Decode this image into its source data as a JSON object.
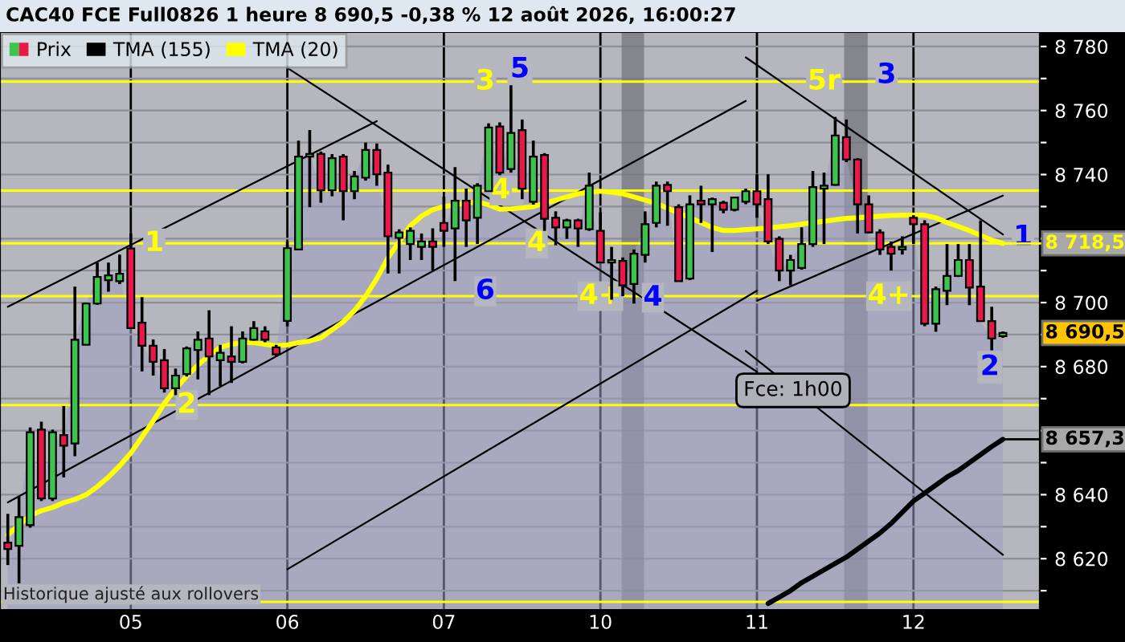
{
  "chart_data": {
    "type": "candlestick",
    "title": "CAC40 FCE Full0826 1 heure 8 690,5 -0,38 % 12 août 2026, 16:00:27",
    "categories": [
      null,
      null,
      null,
      null,
      null,
      null,
      null,
      null,
      null,
      null,
      null,
      "05",
      null,
      null,
      null,
      null,
      null,
      null,
      null,
      null,
      null,
      null,
      null,
      null,
      null,
      "06",
      null,
      null,
      null,
      null,
      null,
      null,
      null,
      null,
      null,
      null,
      null,
      null,
      null,
      "07",
      null,
      null,
      null,
      null,
      null,
      null,
      null,
      null,
      null,
      null,
      null,
      null,
      null,
      "10",
      null,
      null,
      null,
      null,
      null,
      null,
      null,
      null,
      null,
      null,
      null,
      null,
      null,
      "11",
      null,
      null,
      null,
      null,
      null,
      null,
      null,
      null,
      null,
      null,
      null,
      null,
      null,
      "12",
      null,
      null,
      null,
      null,
      null,
      null,
      null,
      null
    ],
    "ylim": [
      8604,
      8784.5
    ],
    "yticks": [
      {
        "value": 8610,
        "label": null
      },
      {
        "value": 8620,
        "label": "8 620"
      },
      {
        "value": 8630,
        "label": null
      },
      {
        "value": 8640,
        "label": "8 640"
      },
      {
        "value": 8650,
        "label": null
      },
      {
        "value": 8660,
        "label": null
      },
      {
        "value": 8670,
        "label": null
      },
      {
        "value": 8680,
        "label": "8 680"
      },
      {
        "value": 8690,
        "label": null
      },
      {
        "value": 8700,
        "label": "8 700"
      },
      {
        "value": 8710,
        "label": null
      },
      {
        "value": 8720,
        "label": null
      },
      {
        "value": 8730,
        "label": null
      },
      {
        "value": 8740,
        "label": "8 740"
      },
      {
        "value": 8750,
        "label": null
      },
      {
        "value": 8760,
        "label": "8 760"
      },
      {
        "value": 8770,
        "label": null
      },
      {
        "value": 8780,
        "label": "8 780"
      }
    ],
    "grid": true,
    "legend": "top left",
    "series": [
      {
        "name": "Prix",
        "colors": [
          "#e8184a",
          "#3cc44c",
          "#3cc44c",
          "#e8184a",
          "#3cc44c",
          "#e8184a",
          "#3cc44c",
          "#3cc44c",
          "#3cc44c",
          "#3cc44c",
          "#3cc44c",
          "#e8184a",
          "#e8184a",
          "#e8184a",
          "#e8184a",
          "#3cc44c",
          "#3cc44c",
          "#3cc44c",
          "#e8184a",
          "#3cc44c",
          "#e8184a",
          "#3cc44c",
          "#3cc44c",
          "#e8184a",
          "#e8184a",
          "#3cc44c",
          "#3cc44c",
          "#3cc44c",
          "#e8184a",
          "#3cc44c",
          "#e8184a",
          "#3cc44c",
          "#3cc44c",
          "#e8184a",
          "#e8184a",
          "#3cc44c",
          "#3cc44c",
          "#3cc44c",
          "#e8184a",
          "#e8184a",
          "#3cc44c",
          "#e8184a",
          "#3cc44c",
          "#3cc44c",
          "#e8184a",
          "#3cc44c",
          "#e8184a",
          "#3cc44c",
          "#e8184a",
          "#e8184a",
          "#3cc44c",
          "#e8184a",
          "#3cc44c",
          "#e8184a",
          "#3cc44c",
          "#e8184a",
          "#3cc44c",
          "#3cc44c",
          "#3cc44c",
          "#e8184a",
          "#e8184a",
          "#3cc44c",
          "#e8184a",
          "#3cc44c",
          "#e8184a",
          "#3cc44c",
          "#3cc44c",
          "#e8184a",
          "#e8184a",
          "#e8184a",
          "#3cc44c",
          "#3cc44c",
          "#3cc44c",
          "#3cc44c",
          "#3cc44c",
          "#e8184a",
          "#e8184a",
          "#e8184a",
          "#e8184a",
          "#e8184a",
          "#3cc44c",
          "#e8184a",
          "#e8184a",
          "#3cc44c",
          "#3cc44c",
          "#3cc44c",
          "#e8184a",
          "#e8184a",
          "#e8184a",
          "#3cc44c"
        ],
        "ohlc": [
          [
            8625,
            8634,
            8618,
            8623
          ],
          [
            8624,
            8639.6,
            8612.3,
            8633
          ],
          [
            8630.5,
            8661,
            8629.7,
            8659.5
          ],
          [
            8660.3,
            8662.8,
            8638,
            8638.8
          ],
          [
            8638.8,
            8660.3,
            8638,
            8659.5
          ],
          [
            8658.6,
            8667.7,
            8645.4,
            8655.3
          ],
          [
            8656,
            8705,
            8652,
            8688.4
          ],
          [
            8686.8,
            8700,
            8686.8,
            8699.7
          ],
          [
            8699.7,
            8712.5,
            8699.3,
            8708
          ],
          [
            8707,
            8712.5,
            8703.4,
            8708.5
          ],
          [
            8706.7,
            8715,
            8705.8,
            8709
          ],
          [
            8716.9,
            8721.6,
            8691.8,
            8692
          ],
          [
            8693.7,
            8701.7,
            8678.5,
            8686.5
          ],
          [
            8686.5,
            8688.5,
            8677.2,
            8681.5
          ],
          [
            8682,
            8685.5,
            8671.9,
            8673.2
          ],
          [
            8673.2,
            8679.4,
            8671.1,
            8677.2
          ],
          [
            8677.7,
            8686.3,
            8676.9,
            8685.7
          ],
          [
            8685.2,
            8691,
            8676,
            8688.4
          ],
          [
            8688.8,
            8697.6,
            8671.1,
            8683.2
          ],
          [
            8682,
            8686.8,
            8673.9,
            8684.3
          ],
          [
            8683.2,
            8692.6,
            8674.9,
            8681.5
          ],
          [
            8681.5,
            8691,
            8681,
            8688.8
          ],
          [
            8688.4,
            8694.2,
            8688.1,
            8692
          ],
          [
            8691,
            8692.6,
            8687.6,
            8688.4
          ],
          [
            8686,
            8686.8,
            8683.2,
            8683.8
          ],
          [
            8694.3,
            8719,
            8692.6,
            8717
          ],
          [
            8716.6,
            8750.6,
            8716.6,
            8745.6
          ],
          [
            8745.6,
            8753.9,
            8729.8,
            8746.4
          ],
          [
            8746.4,
            8747.2,
            8731.2,
            8735.1
          ],
          [
            8735.1,
            8746.4,
            8733.2,
            8745.1
          ],
          [
            8745.6,
            8746.4,
            8725.7,
            8734.8
          ],
          [
            8734.8,
            8741.1,
            8732.3,
            8739.4
          ],
          [
            8739,
            8750,
            8738.1,
            8747.7
          ],
          [
            8747.7,
            8749.7,
            8736.5,
            8740.1
          ],
          [
            8740.6,
            8743.1,
            8709.1,
            8720.7
          ],
          [
            8720.2,
            8722.9,
            8709.1,
            8721.9
          ],
          [
            8718.3,
            8723.5,
            8713.3,
            8722.4
          ],
          [
            8717.4,
            8721.6,
            8713.3,
            8719.1
          ],
          [
            8719.1,
            8723.2,
            8710,
            8717.4
          ],
          [
            8724.9,
            8733.1,
            8717.4,
            8722.4
          ],
          [
            8723.2,
            8742.3,
            8706.7,
            8731.8
          ],
          [
            8731.8,
            8735.6,
            8717.4,
            8725.7
          ],
          [
            8726.5,
            8737.3,
            8718.3,
            8736.5
          ],
          [
            8734.8,
            8756,
            8734.8,
            8754.7
          ],
          [
            8755,
            8756.3,
            8739.8,
            8740.6
          ],
          [
            8741.7,
            8767.9,
            8740.6,
            8753
          ],
          [
            8753.9,
            8757.2,
            8732.3,
            8735.6
          ],
          [
            8731.5,
            8750.6,
            8730.6,
            8745.6
          ],
          [
            8746.1,
            8746.7,
            8722.4,
            8726.2
          ],
          [
            8726.5,
            8728.5,
            8717.9,
            8723.5
          ],
          [
            8723.5,
            8726.2,
            8719.9,
            8725.7
          ],
          [
            8725.7,
            8726.2,
            8717.4,
            8723.2
          ],
          [
            8722.9,
            8740.6,
            8722.4,
            8736.5
          ],
          [
            8722.4,
            8728.2,
            8712.5,
            8712.5
          ],
          [
            8712.5,
            8717.4,
            8700.9,
            8713.3
          ],
          [
            8713,
            8714.1,
            8702,
            8705.4
          ],
          [
            8705.8,
            8716.6,
            8699.7,
            8715.3
          ],
          [
            8714.9,
            8728.5,
            8712.5,
            8724.5
          ],
          [
            8724.9,
            8737.8,
            8723.5,
            8736.5
          ],
          [
            8736.8,
            8737.8,
            8724,
            8734.8
          ],
          [
            8729.8,
            8730.7,
            8706.7,
            8706.7
          ],
          [
            8707.5,
            8733.5,
            8707,
            8730.7
          ],
          [
            8731.8,
            8736.5,
            8724.9,
            8730.7
          ],
          [
            8730.7,
            8732.8,
            8715.8,
            8732.3
          ],
          [
            8731.2,
            8731.8,
            8727.9,
            8729
          ],
          [
            8729,
            8733.1,
            8728.5,
            8732.8
          ],
          [
            8731.5,
            8735.6,
            8730.7,
            8734.8
          ],
          [
            8734.8,
            8740.1,
            8726.5,
            8730.7
          ],
          [
            8732.3,
            8740.1,
            8718.3,
            8719.1
          ],
          [
            8719.9,
            8720.7,
            8706.7,
            8710
          ],
          [
            8710,
            8714.9,
            8705.4,
            8713.3
          ],
          [
            8710.8,
            8723.5,
            8710.3,
            8718.3
          ],
          [
            8718.3,
            8741.1,
            8717.4,
            8736.1
          ],
          [
            8735.6,
            8740.6,
            8718.3,
            8736.5
          ],
          [
            8736.8,
            8758,
            8736.5,
            8752.2
          ],
          [
            8751.7,
            8757.2,
            8743.9,
            8744.7
          ],
          [
            8744.7,
            8745.1,
            8721.6,
            8730.7
          ],
          [
            8730.7,
            8733.5,
            8721.6,
            8721.9
          ],
          [
            8721.9,
            8722.9,
            8714.9,
            8716.6
          ],
          [
            8717.4,
            8719.1,
            8710,
            8715.3
          ],
          [
            8716.6,
            8720.7,
            8715,
            8717.4
          ],
          [
            8726.5,
            8727.3,
            8718.3,
            8724.5
          ],
          [
            8724.5,
            8725.7,
            8692.6,
            8693.4
          ],
          [
            8693.4,
            8705,
            8690.9,
            8704.2
          ],
          [
            8703.7,
            8718.3,
            8699.2,
            8708.3
          ],
          [
            8708.3,
            8718.3,
            8708,
            8713.3
          ],
          [
            8713.3,
            8718.3,
            8699.2,
            8704.7
          ],
          [
            8705,
            8725.7,
            8694.2,
            8694.2
          ],
          [
            8694.2,
            8698.7,
            8685.1,
            8688.8
          ],
          [
            8689.5,
            8691,
            8689,
            8690.5
          ]
        ],
        "value_labels": [
          null,
          null,
          null,
          null,
          null,
          null,
          null,
          null,
          null,
          null,
          null,
          null,
          null,
          null,
          null,
          null,
          null,
          null,
          null,
          null,
          null,
          null,
          null,
          null,
          null,
          null,
          null,
          null,
          null,
          null,
          null,
          null,
          null,
          null,
          null,
          null,
          null,
          null,
          null,
          null,
          null,
          null,
          null,
          null,
          null,
          null,
          null,
          null,
          null,
          null,
          null,
          null,
          null,
          null,
          null,
          null,
          null,
          null,
          null,
          null,
          null,
          null,
          null,
          null,
          null,
          null,
          null,
          null,
          null,
          null,
          null,
          null,
          null,
          null,
          null,
          null,
          null,
          null,
          null,
          null,
          null,
          null,
          null,
          null,
          null,
          null,
          null,
          null,
          null,
          "8 690,5"
        ]
      },
      {
        "name": "TMA (155)",
        "type": "line",
        "color": "#000000",
        "values": [
          null,
          null,
          null,
          null,
          null,
          null,
          null,
          null,
          null,
          null,
          null,
          null,
          null,
          null,
          null,
          null,
          null,
          null,
          null,
          null,
          null,
          null,
          null,
          null,
          null,
          null,
          null,
          null,
          null,
          null,
          null,
          null,
          null,
          null,
          null,
          null,
          null,
          null,
          null,
          null,
          null,
          null,
          null,
          null,
          null,
          null,
          null,
          null,
          null,
          null,
          null,
          null,
          null,
          null,
          null,
          null,
          null,
          null,
          null,
          null,
          null,
          null,
          null,
          null,
          null,
          null,
          null,
          null,
          8606,
          8608,
          8610,
          8612.5,
          8614.5,
          8616.5,
          8618.5,
          8620.5,
          8623,
          8625.5,
          8628,
          8631,
          8634.5,
          8638,
          8640.5,
          8643,
          8645.5,
          8647.5,
          8650,
          8652.5,
          8655,
          8657.3
        ],
        "value_labels": [
          null,
          null,
          null,
          null,
          null,
          null,
          null,
          null,
          null,
          null,
          null,
          null,
          null,
          null,
          null,
          null,
          null,
          null,
          null,
          null,
          null,
          null,
          null,
          null,
          null,
          null,
          null,
          null,
          null,
          null,
          null,
          null,
          null,
          null,
          null,
          null,
          null,
          null,
          null,
          null,
          null,
          null,
          null,
          null,
          null,
          null,
          null,
          null,
          null,
          null,
          null,
          null,
          null,
          null,
          null,
          null,
          null,
          null,
          null,
          null,
          null,
          null,
          null,
          null,
          null,
          null,
          null,
          null,
          null,
          null,
          null,
          null,
          null,
          null,
          null,
          null,
          null,
          null,
          null,
          null,
          null,
          null,
          null,
          null,
          null,
          null,
          null,
          null,
          null,
          "8 657,3"
        ]
      },
      {
        "name": "TMA (20)",
        "type": "line",
        "color": "#ffff00",
        "values": [
          8627.5,
          8630.5,
          8633.5,
          8635,
          8636,
          8637.5,
          8638.5,
          8640,
          8642.5,
          8645.5,
          8649,
          8653,
          8658,
          8663,
          8668.5,
          8673,
          8677,
          8680.5,
          8683.5,
          8686,
          8687,
          8687.5,
          8687.5,
          8687,
          8686.5,
          8686.8,
          8687.5,
          8688,
          8689,
          8691.5,
          8694,
          8697.5,
          8702,
          8707.5,
          8714,
          8719,
          8724,
          8727,
          8729,
          8730,
          8730.5,
          8731,
          8731.5,
          8730.5,
          8729.2,
          8729.3,
          8729.6,
          8730,
          8731,
          8732,
          8733,
          8734,
          8734.5,
          8734.8,
          8734.5,
          8734,
          8733,
          8732,
          8731,
          8729.5,
          8728,
          8726.5,
          8725,
          8723.5,
          8722.5,
          8722.5,
          8722.8,
          8723,
          8723.3,
          8723.7,
          8724,
          8724.5,
          8725,
          8725.4,
          8725.9,
          8726.3,
          8726.5,
          8726.8,
          8727,
          8727.2,
          8727.3,
          8727.3,
          8727.3,
          8726.5,
          8725,
          8723.8,
          8722.5,
          8721,
          8719.5,
          8718.5
        ],
        "value_labels": [
          null,
          null,
          null,
          null,
          null,
          null,
          null,
          null,
          null,
          null,
          null,
          null,
          null,
          null,
          null,
          null,
          null,
          null,
          null,
          null,
          null,
          null,
          null,
          null,
          null,
          null,
          null,
          null,
          null,
          null,
          null,
          null,
          null,
          null,
          null,
          null,
          null,
          null,
          null,
          null,
          null,
          null,
          null,
          null,
          null,
          null,
          null,
          null,
          null,
          null,
          null,
          null,
          null,
          null,
          null,
          null,
          null,
          null,
          null,
          null,
          null,
          null,
          null,
          null,
          null,
          null,
          null,
          null,
          null,
          null,
          null,
          null,
          null,
          null,
          null,
          null,
          null,
          null,
          null,
          null,
          null,
          null,
          null,
          null,
          null,
          null,
          null,
          null,
          null,
          "8 718,5"
        ]
      },
      {
        "type": "line",
        "color": "#000000",
        "values": [
          8698.7,
          null,
          null,
          null,
          null,
          null,
          null,
          null,
          null,
          null,
          null,
          null,
          null,
          null,
          null,
          null,
          null,
          null,
          null,
          null,
          null,
          null,
          null,
          null,
          null,
          null,
          null,
          null,
          null,
          null,
          null,
          null,
          null,
          8756.7,
          null,
          null,
          null,
          null,
          null,
          null,
          null,
          null,
          null,
          null,
          null,
          null,
          null,
          null,
          null,
          null,
          null,
          null,
          null,
          null,
          null,
          null,
          null,
          null,
          null,
          null,
          null,
          null,
          null,
          null,
          null,
          null,
          null,
          null,
          null,
          null,
          null,
          null,
          null,
          null,
          null,
          null,
          null,
          null,
          null,
          null,
          null,
          null,
          null,
          null,
          null,
          null,
          null,
          null,
          null,
          null
        ]
      },
      {
        "type": "line",
        "color": "#000000",
        "values": [
          8637.6,
          null,
          null,
          null,
          null,
          null,
          null,
          null,
          null,
          null,
          null,
          null,
          null,
          null,
          null,
          null,
          null,
          null,
          null,
          null,
          null,
          null,
          null,
          null,
          null,
          null,
          null,
          null,
          null,
          null,
          null,
          null,
          null,
          null,
          null,
          null,
          null,
          null,
          null,
          null,
          null,
          null,
          null,
          null,
          null,
          null,
          null,
          null,
          null,
          null,
          null,
          null,
          null,
          null,
          null,
          null,
          null,
          null,
          null,
          null,
          null,
          null,
          null,
          null,
          null,
          null,
          8763,
          null,
          null,
          null,
          null,
          null,
          null,
          null,
          null,
          null,
          null,
          null,
          null,
          null,
          null,
          null,
          null,
          null,
          null,
          null,
          null,
          null,
          null,
          null
        ]
      },
      {
        "type": "line",
        "color": "#000000",
        "values": [
          null,
          null,
          null,
          null,
          null,
          null,
          null,
          null,
          null,
          null,
          null,
          null,
          null,
          null,
          null,
          null,
          null,
          null,
          null,
          null,
          null,
          null,
          null,
          null,
          null,
          8616.7,
          null,
          null,
          null,
          null,
          null,
          null,
          null,
          null,
          null,
          null,
          null,
          null,
          null,
          null,
          null,
          null,
          null,
          null,
          null,
          null,
          null,
          null,
          null,
          null,
          null,
          null,
          null,
          null,
          null,
          null,
          null,
          null,
          null,
          null,
          null,
          null,
          null,
          null,
          null,
          null,
          null,
          8703.7,
          null,
          null,
          null,
          null,
          null,
          null,
          null,
          null,
          null,
          null,
          null,
          null,
          null,
          null,
          null,
          null,
          null,
          null,
          null,
          null,
          null,
          null
        ]
      },
      {
        "type": "line",
        "color": "#000000",
        "values": [
          null,
          null,
          null,
          null,
          null,
          null,
          null,
          null,
          null,
          null,
          null,
          null,
          null,
          null,
          null,
          null,
          null,
          null,
          null,
          null,
          null,
          null,
          null,
          null,
          null,
          null,
          null,
          null,
          null,
          null,
          null,
          null,
          null,
          null,
          null,
          null,
          null,
          null,
          null,
          null,
          null,
          null,
          null,
          null,
          null,
          null,
          null,
          null,
          null,
          null,
          null,
          null,
          null,
          null,
          null,
          null,
          null,
          null,
          null,
          null,
          null,
          null,
          null,
          null,
          null,
          null,
          null,
          8700.6,
          null,
          null,
          null,
          null,
          null,
          null,
          null,
          null,
          null,
          null,
          null,
          null,
          null,
          null,
          null,
          null,
          null,
          null,
          null,
          null,
          null,
          8733.4
        ]
      },
      {
        "type": "line",
        "color": "#000000",
        "values": [
          null,
          null,
          null,
          null,
          null,
          null,
          null,
          null,
          null,
          null,
          null,
          null,
          null,
          null,
          null,
          null,
          null,
          null,
          null,
          null,
          null,
          null,
          null,
          null,
          null,
          8773.3,
          null,
          null,
          null,
          null,
          null,
          null,
          null,
          null,
          null,
          null,
          null,
          null,
          null,
          null,
          null,
          null,
          null,
          null,
          null,
          null,
          null,
          null,
          null,
          null,
          null,
          null,
          null,
          null,
          null,
          null,
          null,
          null,
          null,
          null,
          null,
          null,
          null,
          null,
          null,
          null,
          null,
          8678.4,
          null,
          null,
          null,
          null,
          null,
          null,
          null,
          null,
          null,
          null,
          null,
          null,
          null,
          null,
          null,
          null,
          null,
          null,
          null,
          null,
          null,
          null
        ]
      },
      {
        "type": "line",
        "color": "#000000",
        "values": [
          null,
          null,
          null,
          null,
          null,
          null,
          null,
          null,
          null,
          null,
          null,
          null,
          null,
          null,
          null,
          null,
          null,
          null,
          null,
          null,
          null,
          null,
          null,
          null,
          null,
          null,
          null,
          null,
          null,
          null,
          null,
          null,
          null,
          null,
          null,
          null,
          null,
          null,
          null,
          null,
          null,
          null,
          null,
          null,
          null,
          null,
          null,
          null,
          null,
          null,
          null,
          null,
          null,
          null,
          null,
          null,
          null,
          null,
          null,
          null,
          null,
          null,
          null,
          null,
          null,
          null,
          8776.6,
          null,
          null,
          null,
          null,
          null,
          null,
          null,
          null,
          null,
          null,
          null,
          null,
          null,
          null,
          null,
          null,
          null,
          null,
          null,
          null,
          null,
          null,
          8721.3
        ]
      },
      {
        "type": "line",
        "color": "#000000",
        "values": [
          null,
          null,
          null,
          null,
          null,
          null,
          null,
          null,
          null,
          null,
          null,
          null,
          null,
          null,
          null,
          null,
          null,
          null,
          null,
          null,
          null,
          null,
          null,
          null,
          null,
          null,
          null,
          null,
          null,
          null,
          null,
          null,
          null,
          null,
          null,
          null,
          null,
          null,
          null,
          null,
          null,
          null,
          null,
          null,
          null,
          null,
          null,
          null,
          null,
          null,
          null,
          null,
          null,
          null,
          null,
          null,
          null,
          null,
          null,
          null,
          null,
          null,
          null,
          null,
          null,
          null,
          8684.9,
          null,
          null,
          null,
          null,
          null,
          null,
          null,
          null,
          null,
          null,
          null,
          null,
          null,
          null,
          null,
          null,
          null,
          null,
          null,
          null,
          null,
          null,
          8621.2
        ]
      }
    ],
    "ref_lines": [
      {
        "axis": "y",
        "value": 8769,
        "color": "#ffff00"
      },
      {
        "axis": "y",
        "value": 8735,
        "color": "#ffff00"
      },
      {
        "axis": "y",
        "value": 8718.5,
        "color": "#ffff00"
      },
      {
        "axis": "y",
        "value": 8702,
        "color": "#ffff00"
      },
      {
        "axis": "y",
        "value": 8668,
        "color": "#ffff00"
      },
      {
        "axis": "y",
        "value": 8606.5,
        "color": "#ffff00"
      }
    ],
    "annotations": [
      {
        "text": "1",
        "y": 8718.5
      },
      {
        "text": "2",
        "y": 8668
      },
      {
        "text": "3",
        "y": 8769
      },
      {
        "text": "4-",
        "y": 8735
      },
      {
        "text": "4",
        "y": 8718.5
      },
      {
        "text": "6",
        "y": 8703.5
      },
      {
        "text": "4+",
        "y": 8702
      },
      {
        "text": "4",
        "y": 8701.5
      },
      {
        "text": "5r",
        "y": 8769
      },
      {
        "text": "3",
        "y": 8771
      },
      {
        "text": "4+",
        "y": 8702
      },
      {
        "text": "1",
        "y": 8720.4
      },
      "5",
      "2",
      "Fce: 1h00",
      "Historique ajusté aux rollovers"
    ]
  }
}
